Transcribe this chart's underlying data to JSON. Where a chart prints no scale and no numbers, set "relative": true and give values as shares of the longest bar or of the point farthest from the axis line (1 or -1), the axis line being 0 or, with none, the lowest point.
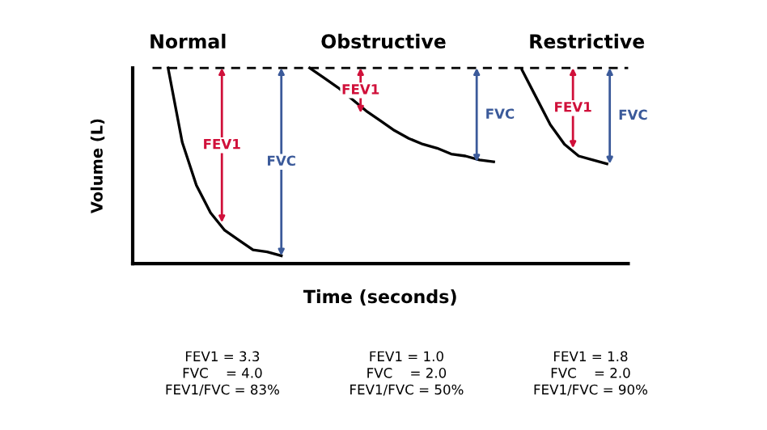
{
  "chart_data": {
    "type": "line",
    "relative": true,
    "xlabel": "Time (seconds)",
    "ylabel": "Volume (L)",
    "categories": [
      null,
      null,
      null,
      null,
      null,
      null,
      null,
      null,
      null,
      null,
      null,
      null,
      null,
      null,
      null,
      null,
      null,
      null,
      null,
      null,
      null,
      null,
      null,
      null,
      null,
      null,
      null,
      null,
      null,
      null,
      null,
      null,
      null,
      null,
      null
    ],
    "series": [
      {
        "color": "#000000",
        "values": [
          null,
          null,
          1.0,
          0.62,
          0.4,
          0.26,
          0.17,
          0.12,
          0.07,
          0.06,
          0.04,
          null,
          null,
          null,
          null,
          null,
          null,
          null,
          null,
          null,
          null,
          null,
          null,
          null,
          null,
          null,
          null,
          null,
          null,
          null,
          null,
          null,
          null,
          null,
          null
        ]
      },
      {
        "color": "#000000",
        "values": [
          null,
          null,
          null,
          null,
          null,
          null,
          null,
          null,
          null,
          null,
          null,
          null,
          1.0,
          0.95,
          0.9,
          0.84,
          0.78,
          0.73,
          0.68,
          0.64,
          0.61,
          0.59,
          0.56,
          0.55,
          0.53,
          0.52,
          null,
          null,
          null,
          null,
          null,
          null,
          null,
          null,
          null
        ]
      },
      {
        "color": "#000000",
        "values": [
          null,
          null,
          null,
          null,
          null,
          null,
          null,
          null,
          null,
          null,
          null,
          null,
          null,
          null,
          null,
          null,
          null,
          null,
          null,
          null,
          null,
          null,
          null,
          null,
          null,
          null,
          null,
          0.99,
          0.85,
          0.71,
          0.61,
          0.55,
          0.53,
          0.51,
          null
        ]
      }
    ],
    "ref_lines": [
      {
        "axis": "y",
        "value": 1,
        "color": "#000000",
        "line_style": "dashed"
      }
    ],
    "annotations": [
      "Normal",
      "Obstructive",
      "Restrictive",
      "FEV1",
      "FVC",
      "FEV1",
      "FVC",
      "FEV1",
      "FVC",
      "FEV1 = 3.3\nFVC    = 4.0\nFEV1/FVC = 83%",
      "FEV1 = 1.0\nFVC    = 2.0\nFEV1/FVC = 50%",
      "FEV1 = 1.8\nFVC    = 2.0\nFEV1/FVC = 90%"
    ]
  }
}
